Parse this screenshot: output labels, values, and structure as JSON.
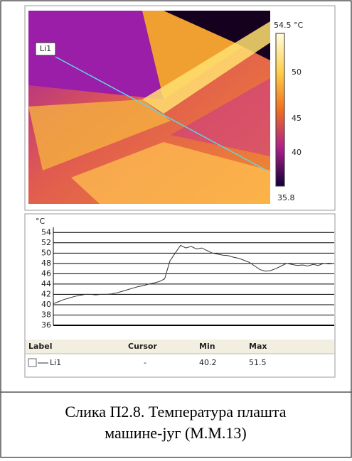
{
  "thermal": {
    "line_label": "Li1",
    "scale_max": "54.5 °C",
    "scale_ticks": [
      "50",
      "45",
      "40"
    ],
    "scale_min": "35.8"
  },
  "chart_data": {
    "type": "line",
    "y_label": "°C",
    "series": [
      {
        "name": "Li1",
        "color": "#333333",
        "values": [
          40.2,
          40.6,
          41,
          41.3,
          41.6,
          41.8,
          42,
          42,
          41.9,
          42,
          42,
          42.1,
          42.3,
          42.6,
          42.9,
          43.2,
          43.5,
          43.7,
          44,
          44.2,
          44.5,
          45,
          48.5,
          50,
          51.5,
          51,
          51.3,
          50.8,
          51,
          50.5,
          50,
          49.8,
          49.6,
          49.5,
          49.2,
          49,
          48.6,
          48.2,
          47.5,
          46.8,
          46.5,
          46.6,
          47,
          47.5,
          48,
          47.8,
          47.6,
          47.7,
          47.5,
          47.8,
          47.6,
          48,
          47.9,
          48
        ]
      }
    ],
    "ylim": [
      36,
      55
    ],
    "yticks": [
      36,
      38,
      40,
      42,
      44,
      46,
      48,
      50,
      52,
      54
    ],
    "grid": true
  },
  "table": {
    "header": [
      "Label",
      "Cursor",
      "Min",
      "Max"
    ],
    "rows": [
      [
        "Li1",
        "-",
        "40.2",
        "51.5"
      ]
    ]
  },
  "caption": [
    "Слика П2.8. Температура плашта",
    "машине-југ (М.М.13)"
  ]
}
